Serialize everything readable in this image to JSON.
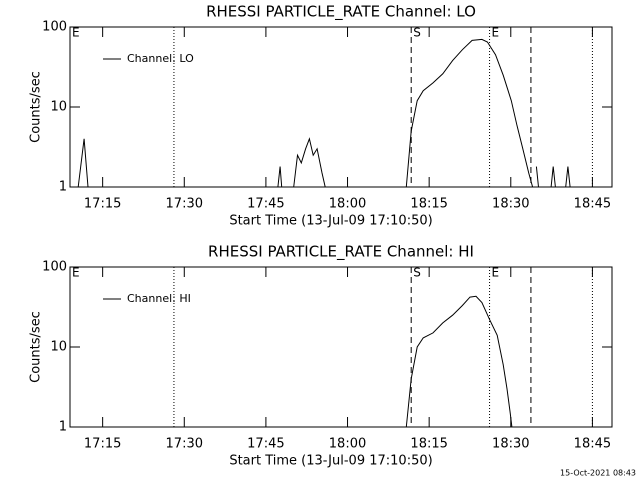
{
  "chart_data": [
    {
      "type": "line",
      "title": "RHESSI PARTICLE_RATE Channel: LO",
      "xlabel": "Start Time (13-Jul-09 17:10:50)",
      "ylabel": "Counts/sec",
      "x": [
        1030.5,
        1031.6,
        1032.3,
        null,
        1067.2,
        1067.6,
        1067.9,
        null,
        1070.1,
        1070.8,
        1071.5,
        1072.3,
        1073.0,
        1073.7,
        1074.4,
        1075.3,
        1075.9,
        null,
        1090.8,
        1091.7,
        1092.8,
        1093.9,
        1095.7,
        1097.5,
        1099.3,
        1101.1,
        1102.9,
        1104.7,
        1105.7,
        1107.2,
        1108.6,
        1110.1,
        1111.1,
        1112.2,
        1113.3,
        1114.0,
        null,
        1114.7,
        1115.1,
        null,
        1117.4,
        1117.8,
        1118.2,
        null,
        1120.1,
        1120.5,
        1120.9
      ],
      "series": [
        {
          "name": "Channel: LO",
          "color": "#000000",
          "values": [
            1,
            4,
            1,
            null,
            1,
            1.8,
            1,
            null,
            1,
            2.5,
            2,
            3,
            4,
            2.5,
            3,
            1.5,
            1,
            null,
            1,
            5,
            12,
            16,
            20,
            26,
            38,
            52,
            68,
            70,
            65,
            45,
            25,
            12,
            6,
            3,
            1.5,
            1,
            null,
            1.8,
            1,
            null,
            1,
            1.8,
            1,
            null,
            1,
            1.8,
            1
          ]
        }
      ],
      "xlim": [
        1029,
        1128.6
      ],
      "ylim": [
        1,
        100
      ],
      "yticks": [
        1,
        10,
        100
      ],
      "log_y": true,
      "xticks": [
        {
          "value": 1035,
          "label": "17:15"
        },
        {
          "value": 1050,
          "label": "17:30"
        },
        {
          "value": 1065,
          "label": "17:45"
        },
        {
          "value": 1080,
          "label": "18:00"
        },
        {
          "value": 1095,
          "label": "18:15"
        },
        {
          "value": 1110,
          "label": "18:30"
        },
        {
          "value": 1125,
          "label": "18:45"
        }
      ],
      "legend": "upper left",
      "markers": [
        {
          "x": 1048.1,
          "style": "dotted"
        },
        {
          "x": 1091.7,
          "style": "dashed"
        },
        {
          "x": 1106.1,
          "style": "dotted"
        },
        {
          "x": 1113.7,
          "style": "dashed"
        },
        {
          "x": 1125,
          "style": "dotted"
        }
      ],
      "flags": [
        {
          "label": "E",
          "x": 1029
        },
        {
          "label": "S",
          "x": 1091.7
        },
        {
          "label": "E",
          "x": 1106.1
        }
      ]
    },
    {
      "type": "line",
      "title": "RHESSI PARTICLE_RATE Channel: HI",
      "xlabel": "Start Time (13-Jul-09 17:10:50)",
      "ylabel": "Counts/sec",
      "x": [
        1090.8,
        1091.7,
        1092.8,
        1093.9,
        1095.7,
        1097.5,
        1099.3,
        1101.1,
        1102.5,
        1103.6,
        1104.7,
        1106.1,
        1107.5,
        1108.6,
        1109.3,
        1109.9,
        1110.2
      ],
      "series": [
        {
          "name": "Channel: HI",
          "color": "#000000",
          "values": [
            1,
            4,
            10,
            13,
            15,
            20,
            25,
            33,
            42,
            43,
            36,
            22,
            14,
            6,
            3,
            1.5,
            1
          ]
        }
      ],
      "xlim": [
        1029,
        1128.6
      ],
      "ylim": [
        1,
        100
      ],
      "yticks": [
        1,
        10,
        100
      ],
      "log_y": true,
      "xticks": [
        {
          "value": 1035,
          "label": "17:15"
        },
        {
          "value": 1050,
          "label": "17:30"
        },
        {
          "value": 1065,
          "label": "17:45"
        },
        {
          "value": 1080,
          "label": "18:00"
        },
        {
          "value": 1095,
          "label": "18:15"
        },
        {
          "value": 1110,
          "label": "18:30"
        },
        {
          "value": 1125,
          "label": "18:45"
        }
      ],
      "legend": "upper left",
      "markers": [
        {
          "x": 1048.1,
          "style": "dotted"
        },
        {
          "x": 1091.7,
          "style": "dashed"
        },
        {
          "x": 1106.1,
          "style": "dotted"
        },
        {
          "x": 1113.7,
          "style": "dashed"
        },
        {
          "x": 1125,
          "style": "dotted"
        }
      ],
      "flags": [
        {
          "label": "E",
          "x": 1029
        },
        {
          "label": "S",
          "x": 1091.7
        },
        {
          "label": "E",
          "x": 1106.1
        }
      ]
    }
  ],
  "footer": "15-Oct-2021 08:43"
}
